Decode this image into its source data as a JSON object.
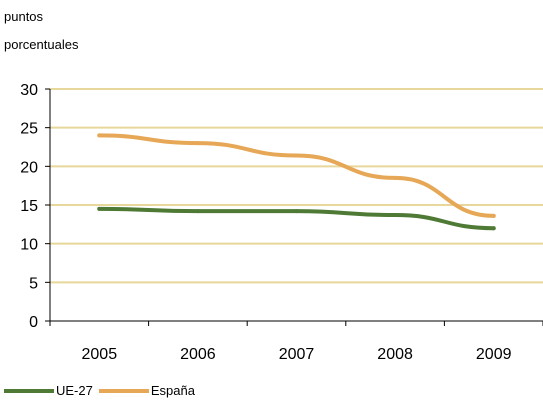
{
  "chart_data": {
    "type": "line",
    "ylabel_lines": [
      "puntos",
      "porcentuales"
    ],
    "x": [
      "2005",
      "2006",
      "2007",
      "2008",
      "2009"
    ],
    "y_ticks": [
      0,
      5,
      10,
      15,
      20,
      25,
      30
    ],
    "ylim": [
      0,
      30
    ],
    "grid": true,
    "gridline_color": "#e8d79a",
    "legend_position": "bottom-left",
    "series": [
      {
        "name": "UE-27",
        "color": "#4e7a35",
        "values": [
          14.5,
          14.2,
          14.2,
          13.7,
          12.0
        ]
      },
      {
        "name": "España",
        "color": "#e6a756",
        "values": [
          24.0,
          23.0,
          21.4,
          18.5,
          13.6
        ]
      }
    ]
  }
}
